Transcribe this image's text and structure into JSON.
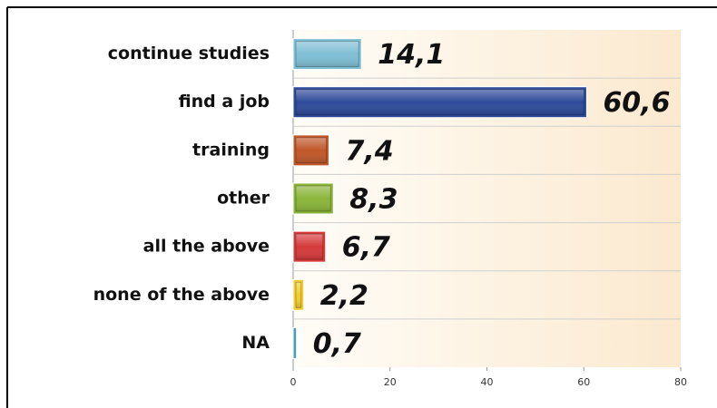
{
  "chart_data": {
    "type": "bar",
    "orientation": "horizontal",
    "categories": [
      "continue studies",
      "find a job",
      "training",
      "other",
      "all the above",
      "none of the above",
      "NA"
    ],
    "values": [
      14.1,
      60.6,
      7.4,
      8.3,
      6.7,
      2.2,
      0.7
    ],
    "value_labels": [
      "14,1",
      "60,6",
      "7,4",
      "8,3",
      "6,7",
      "2,2",
      "0,7"
    ],
    "colors": [
      "#7fbfd4",
      "#2e4a9a",
      "#c0582a",
      "#8ab53a",
      "#d63a3a",
      "#f2cc30",
      "#4aa0b8"
    ],
    "xlim": [
      0,
      80
    ],
    "xticks": [
      0,
      20,
      40,
      60,
      80
    ]
  }
}
